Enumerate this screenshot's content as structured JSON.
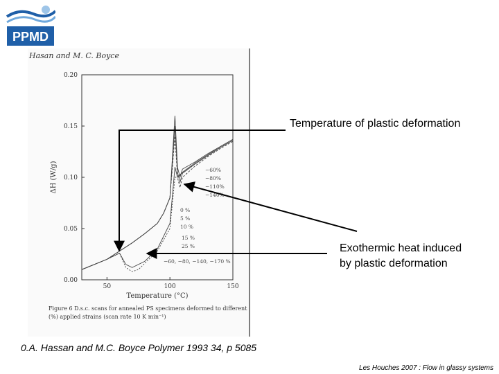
{
  "logo": {
    "text": "PPMD",
    "color": "#1f5fa8"
  },
  "chart_data": {
    "type": "line",
    "header": "Hasan and M. C. Boyce",
    "ylabel": "ΔH (W/g)",
    "xlabel": "Temperature (°C)",
    "xlim": [
      30,
      150
    ],
    "ylim": [
      0.0,
      0.2
    ],
    "xticks": [
      "50",
      "100",
      "150"
    ],
    "yticks": [
      "0.00",
      "0.05",
      "0.10",
      "0.15",
      "0.20"
    ],
    "caption": "Figure 6   D.s.c. scans for annealed PS specimens deformed to different (%) applied strains (scan rate 10 K min⁻¹)",
    "series_labels": [
      "−60%",
      "−80%",
      "−110%",
      "−140%",
      "0 %",
      "5 %",
      "10 %",
      "15 %",
      "25 %",
      "−60, −80, −140, −170 %"
    ],
    "series": [
      {
        "name": "−60%",
        "x": [
          30,
          50,
          60,
          70,
          80,
          90,
          95,
          100,
          104,
          106,
          108,
          110,
          120,
          130,
          140,
          150
        ],
        "y": [
          0.01,
          0.02,
          0.028,
          0.036,
          0.045,
          0.055,
          0.065,
          0.08,
          0.16,
          0.11,
          0.1,
          0.108,
          0.115,
          0.123,
          0.13,
          0.137
        ]
      },
      {
        "name": "−80%",
        "x": [
          30,
          50,
          60,
          70,
          80,
          90,
          95,
          100,
          104,
          106,
          108,
          110,
          120,
          130,
          140,
          150
        ],
        "y": [
          0.01,
          0.02,
          0.028,
          0.036,
          0.045,
          0.055,
          0.065,
          0.08,
          0.15,
          0.105,
          0.095,
          0.104,
          0.113,
          0.121,
          0.129,
          0.136
        ]
      },
      {
        "name": "−110%",
        "x": [
          30,
          50,
          60,
          70,
          80,
          90,
          95,
          100,
          104,
          106,
          108,
          110,
          120,
          130,
          140,
          150
        ],
        "y": [
          0.01,
          0.02,
          0.028,
          0.036,
          0.045,
          0.055,
          0.065,
          0.08,
          0.14,
          0.1,
          0.09,
          0.1,
          0.111,
          0.12,
          0.128,
          0.135
        ]
      },
      {
        "name": "0 %",
        "x": [
          30,
          50,
          60,
          65,
          70,
          80,
          90,
          100,
          104,
          106,
          110,
          120,
          130,
          140,
          150
        ],
        "y": [
          0.01,
          0.02,
          0.026,
          0.015,
          0.012,
          0.018,
          0.03,
          0.055,
          0.11,
          0.1,
          0.105,
          0.114,
          0.122,
          0.13,
          0.137
        ]
      },
      {
        "name": "25 %",
        "x": [
          30,
          50,
          60,
          65,
          70,
          75,
          80,
          90,
          100,
          104,
          106,
          110,
          120,
          130,
          140,
          150
        ],
        "y": [
          0.01,
          0.02,
          0.026,
          0.012,
          0.008,
          0.01,
          0.016,
          0.028,
          0.05,
          0.1,
          0.1,
          0.104,
          0.113,
          0.121,
          0.129,
          0.136
        ]
      }
    ]
  },
  "annotations": {
    "temp_label": "Temperature of plastic deformation",
    "exo_line1": "Exothermic heat induced",
    "exo_line2": "by plastic deformation"
  },
  "citation": "0.A. Hassan and M.C. Boyce Polymer 1993 34, p 5085",
  "footer": "Les Houches 2007 : Flow in glassy systems"
}
